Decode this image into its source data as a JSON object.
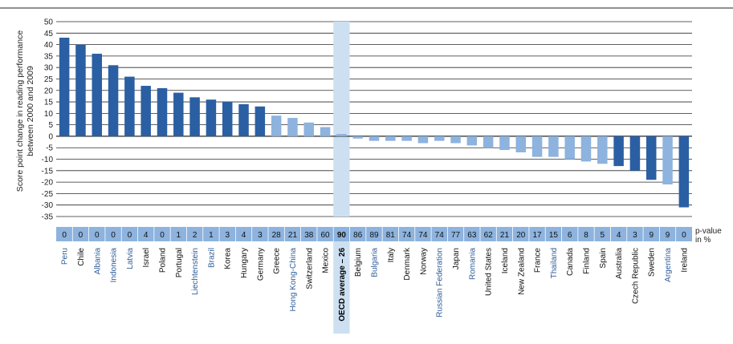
{
  "chart_data": {
    "type": "bar",
    "ylabel": "Score point change in reading performance between 2000 and 2009",
    "pvalue_label": "p-value in %",
    "ylim": [
      -35,
      50
    ],
    "yticks": [
      50,
      45,
      40,
      35,
      30,
      25,
      20,
      15,
      10,
      5,
      0,
      -5,
      -10,
      -15,
      -20,
      -25,
      -30,
      -35
    ],
    "grid": true,
    "highlight_category": "OECD average – 26",
    "colors": {
      "significant": "#2b5fa3",
      "not_significant": "#8db3de",
      "oecd_band": "#cde0f2",
      "pvalue_band": "#8db3de",
      "partner_label": "#2e5c9a",
      "oecd_label": "#000000"
    },
    "categories": [
      "Peru",
      "Chile",
      "Albania",
      "Indonesia",
      "Latvia",
      "Israel",
      "Poland",
      "Portugal",
      "Liechtenstein",
      "Brazil",
      "Korea",
      "Hungary",
      "Germany",
      "Greece",
      "Hong Kong-China",
      "Switzerland",
      "Mexico",
      "OECD average – 26",
      "Belgium",
      "Bulgaria",
      "Italy",
      "Denmark",
      "Norway",
      "Russian Federation",
      "Japan",
      "Romania",
      "United States",
      "Iceland",
      "New Zealand",
      "France",
      "Thailand",
      "Canada",
      "Finland",
      "Spain",
      "Australia",
      "Czech Republic",
      "Sweden",
      "Argentina",
      "Ireland"
    ],
    "values": [
      43,
      40,
      36,
      31,
      26,
      22,
      21,
      19,
      17,
      16,
      15,
      14,
      13,
      9,
      8,
      6,
      4,
      1,
      -1,
      -2,
      -2,
      -2,
      -3,
      -2,
      -3,
      -4,
      -5,
      -6,
      -7,
      -9,
      -9,
      -10,
      -11,
      -12,
      -13,
      -15,
      -19,
      -21,
      -31
    ],
    "pvalues": [
      "0",
      "0",
      "0",
      "0",
      "0",
      "4",
      "0",
      "1",
      "2",
      "1",
      "3",
      "4",
      "3",
      "28",
      "21",
      "38",
      "60",
      "90",
      "86",
      "89",
      "81",
      "74",
      "74",
      "74",
      "77",
      "63",
      "62",
      "21",
      "20",
      "17",
      "15",
      "6",
      "8",
      "5",
      "4",
      "3",
      "9",
      "9",
      "0"
    ],
    "significant": [
      true,
      true,
      true,
      true,
      true,
      true,
      true,
      true,
      true,
      true,
      true,
      true,
      true,
      false,
      false,
      false,
      false,
      false,
      false,
      false,
      false,
      false,
      false,
      false,
      false,
      false,
      false,
      false,
      false,
      false,
      false,
      false,
      false,
      false,
      true,
      true,
      true,
      false,
      true
    ],
    "partner": [
      true,
      false,
      true,
      true,
      true,
      false,
      false,
      false,
      true,
      true,
      false,
      false,
      false,
      false,
      true,
      false,
      false,
      false,
      false,
      true,
      false,
      false,
      false,
      true,
      false,
      true,
      false,
      false,
      false,
      false,
      true,
      false,
      false,
      false,
      false,
      false,
      false,
      true,
      false
    ]
  }
}
